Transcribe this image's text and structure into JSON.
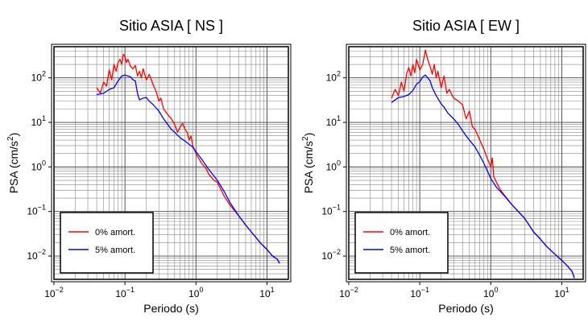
{
  "chart_data": [
    {
      "type": "line",
      "title": "Sitio ASIA [ NS ]",
      "xlabel": "Periodo (s)",
      "ylabel_main": "PSA (cm/s",
      "ylabel_sup": "2",
      "ylabel_close": ")",
      "xscale": "log",
      "yscale": "log",
      "xlim": [
        0.01,
        20
      ],
      "ylim": [
        0.003,
        500
      ],
      "grid": true,
      "legend_position": "bottom-left",
      "x_ticks": [
        {
          "base": "10",
          "exp": "−2"
        },
        {
          "base": "10",
          "exp": "−1"
        },
        {
          "base": "10",
          "exp": "0"
        },
        {
          "base": "10",
          "exp": "1"
        }
      ],
      "y_ticks": [
        {
          "base": "10",
          "exp": "−2"
        },
        {
          "base": "10",
          "exp": "−1"
        },
        {
          "base": "10",
          "exp": "0"
        },
        {
          "base": "10",
          "exp": "1"
        },
        {
          "base": "10",
          "exp": "2"
        }
      ],
      "series": [
        {
          "name": "0% amort.",
          "color": "#ff0000",
          "points": [
            [
              0.04,
              60
            ],
            [
              0.045,
              45
            ],
            [
              0.05,
              80
            ],
            [
              0.055,
              65
            ],
            [
              0.06,
              150
            ],
            [
              0.065,
              90
            ],
            [
              0.07,
              200
            ],
            [
              0.075,
              140
            ],
            [
              0.08,
              220
            ],
            [
              0.085,
              260
            ],
            [
              0.09,
              200
            ],
            [
              0.095,
              340
            ],
            [
              0.1,
              300
            ],
            [
              0.105,
              220
            ],
            [
              0.11,
              260
            ],
            [
              0.12,
              180
            ],
            [
              0.13,
              160
            ],
            [
              0.14,
              190
            ],
            [
              0.15,
              110
            ],
            [
              0.16,
              140
            ],
            [
              0.17,
              100
            ],
            [
              0.18,
              160
            ],
            [
              0.2,
              90
            ],
            [
              0.22,
              120
            ],
            [
              0.25,
              70
            ],
            [
              0.28,
              45
            ],
            [
              0.3,
              30
            ],
            [
              0.32,
              35
            ],
            [
              0.35,
              20
            ],
            [
              0.4,
              15
            ],
            [
              0.45,
              12
            ],
            [
              0.5,
              9
            ],
            [
              0.55,
              6
            ],
            [
              0.6,
              8
            ],
            [
              0.65,
              9.5
            ],
            [
              0.7,
              7
            ],
            [
              0.75,
              6
            ],
            [
              0.8,
              4
            ],
            [
              0.85,
              5
            ],
            [
              0.9,
              3
            ],
            [
              1.0,
              2.0
            ],
            [
              1.2,
              1.2
            ],
            [
              1.4,
              0.9
            ],
            [
              1.5,
              0.7
            ],
            [
              1.7,
              0.55
            ],
            [
              1.8,
              0.5
            ],
            [
              2.0,
              0.45
            ],
            [
              2.5,
              0.22
            ],
            [
              3,
              0.14
            ],
            [
              4,
              0.08
            ],
            [
              5,
              0.05
            ],
            [
              6,
              0.035
            ],
            [
              7,
              0.026
            ],
            [
              8,
              0.02
            ],
            [
              10,
              0.014
            ],
            [
              12,
              0.01
            ],
            [
              14,
              0.0085
            ],
            [
              15,
              0.007
            ]
          ]
        },
        {
          "name": "5% amort.",
          "color": "#0000ff",
          "points": [
            [
              0.04,
              42
            ],
            [
              0.05,
              45
            ],
            [
              0.06,
              55
            ],
            [
              0.07,
              60
            ],
            [
              0.08,
              85
            ],
            [
              0.09,
              110
            ],
            [
              0.1,
              115
            ],
            [
              0.11,
              110
            ],
            [
              0.12,
              105
            ],
            [
              0.13,
              90
            ],
            [
              0.14,
              85
            ],
            [
              0.15,
              45
            ],
            [
              0.16,
              32
            ],
            [
              0.18,
              35
            ],
            [
              0.2,
              36
            ],
            [
              0.22,
              30
            ],
            [
              0.25,
              25
            ],
            [
              0.3,
              18
            ],
            [
              0.35,
              12
            ],
            [
              0.4,
              9
            ],
            [
              0.45,
              7
            ],
            [
              0.5,
              6
            ],
            [
              0.6,
              4.5
            ],
            [
              0.7,
              3.8
            ],
            [
              0.8,
              3.2
            ],
            [
              0.9,
              2.8
            ],
            [
              1.0,
              2.2
            ],
            [
              1.2,
              1.5
            ],
            [
              1.5,
              0.9
            ],
            [
              2.0,
              0.5
            ],
            [
              2.5,
              0.28
            ],
            [
              3,
              0.16
            ],
            [
              4,
              0.08
            ],
            [
              5,
              0.05
            ],
            [
              6,
              0.035
            ],
            [
              7,
              0.026
            ],
            [
              8,
              0.02
            ],
            [
              10,
              0.014
            ],
            [
              12,
              0.01
            ],
            [
              14,
              0.0085
            ],
            [
              15,
              0.0068
            ]
          ]
        }
      ]
    },
    {
      "type": "line",
      "title": "Sitio ASIA [ EW ]",
      "xlabel": "Periodo (s)",
      "ylabel_main": "PSA (cm/s",
      "ylabel_sup": "2",
      "ylabel_close": ")",
      "xscale": "log",
      "yscale": "log",
      "xlim": [
        0.01,
        20
      ],
      "ylim": [
        0.003,
        500
      ],
      "grid": true,
      "legend_position": "bottom-left",
      "x_ticks": [
        {
          "base": "10",
          "exp": "−2"
        },
        {
          "base": "10",
          "exp": "−1"
        },
        {
          "base": "10",
          "exp": "0"
        },
        {
          "base": "10",
          "exp": "1"
        }
      ],
      "y_ticks": [
        {
          "base": "10",
          "exp": "−2"
        },
        {
          "base": "10",
          "exp": "−1"
        },
        {
          "base": "10",
          "exp": "0"
        },
        {
          "base": "10",
          "exp": "1"
        },
        {
          "base": "10",
          "exp": "2"
        }
      ],
      "series": [
        {
          "name": "0% amort.",
          "color": "#ff0000",
          "points": [
            [
              0.04,
              35
            ],
            [
              0.045,
              55
            ],
            [
              0.05,
              40
            ],
            [
              0.055,
              80
            ],
            [
              0.06,
              50
            ],
            [
              0.065,
              120
            ],
            [
              0.07,
              170
            ],
            [
              0.075,
              110
            ],
            [
              0.08,
              200
            ],
            [
              0.085,
              130
            ],
            [
              0.09,
              260
            ],
            [
              0.1,
              150
            ],
            [
              0.11,
              200
            ],
            [
              0.12,
              420
            ],
            [
              0.13,
              250
            ],
            [
              0.14,
              180
            ],
            [
              0.15,
              120
            ],
            [
              0.16,
              200
            ],
            [
              0.17,
              100
            ],
            [
              0.18,
              140
            ],
            [
              0.2,
              60
            ],
            [
              0.22,
              110
            ],
            [
              0.24,
              45
            ],
            [
              0.26,
              55
            ],
            [
              0.3,
              35
            ],
            [
              0.35,
              30
            ],
            [
              0.4,
              25
            ],
            [
              0.45,
              12
            ],
            [
              0.5,
              18
            ],
            [
              0.55,
              8
            ],
            [
              0.6,
              7
            ],
            [
              0.7,
              4
            ],
            [
              0.8,
              2.5
            ],
            [
              0.9,
              1.5
            ],
            [
              1.0,
              1.0
            ],
            [
              1.05,
              1.6
            ],
            [
              1.1,
              0.6
            ],
            [
              1.3,
              0.35
            ],
            [
              1.5,
              0.25
            ],
            [
              2,
              0.14
            ],
            [
              3,
              0.07
            ],
            [
              4,
              0.035
            ],
            [
              5,
              0.024
            ],
            [
              6,
              0.017
            ],
            [
              8,
              0.011
            ],
            [
              10,
              0.008
            ],
            [
              12,
              0.006
            ],
            [
              14,
              0.0045
            ],
            [
              15,
              0.0033
            ]
          ]
        },
        {
          "name": "5% amort.",
          "color": "#0000ff",
          "points": [
            [
              0.04,
              28
            ],
            [
              0.05,
              36
            ],
            [
              0.06,
              38
            ],
            [
              0.07,
              42
            ],
            [
              0.08,
              52
            ],
            [
              0.09,
              72
            ],
            [
              0.1,
              82
            ],
            [
              0.11,
              105
            ],
            [
              0.12,
              115
            ],
            [
              0.13,
              100
            ],
            [
              0.14,
              85
            ],
            [
              0.15,
              60
            ],
            [
              0.17,
              40
            ],
            [
              0.2,
              26
            ],
            [
              0.22,
              22
            ],
            [
              0.25,
              16
            ],
            [
              0.3,
              12
            ],
            [
              0.35,
              9
            ],
            [
              0.4,
              6.5
            ],
            [
              0.45,
              5
            ],
            [
              0.5,
              4
            ],
            [
              0.6,
              2.8
            ],
            [
              0.7,
              1.8
            ],
            [
              0.8,
              1.2
            ],
            [
              0.9,
              0.8
            ],
            [
              1.0,
              0.55
            ],
            [
              1.2,
              0.35
            ],
            [
              1.5,
              0.24
            ],
            [
              2,
              0.14
            ],
            [
              3,
              0.07
            ],
            [
              4,
              0.035
            ],
            [
              5,
              0.024
            ],
            [
              6,
              0.017
            ],
            [
              8,
              0.011
            ],
            [
              10,
              0.008
            ],
            [
              12,
              0.006
            ],
            [
              14,
              0.0045
            ],
            [
              15,
              0.0032
            ]
          ]
        }
      ]
    }
  ]
}
